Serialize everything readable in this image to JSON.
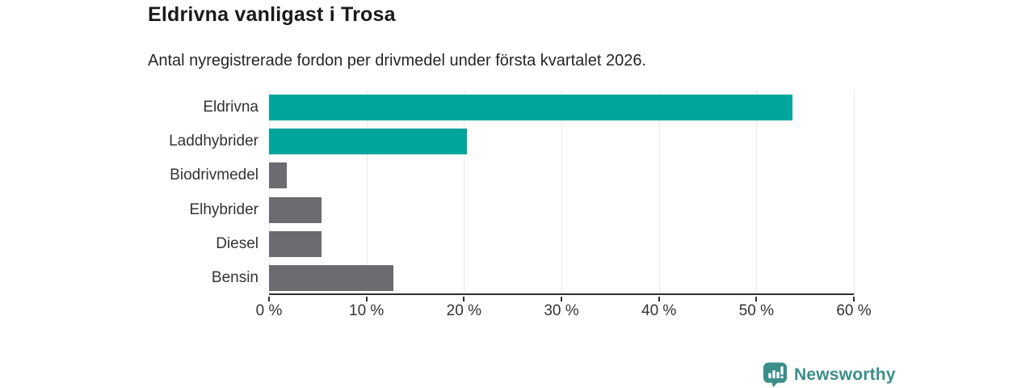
{
  "header": {
    "title": "Eldrivna vanligast i Trosa",
    "subtitle": "Antal nyregistrerade fordon per drivmedel under första kvartalet 2026."
  },
  "chart_data": {
    "type": "bar",
    "orientation": "horizontal",
    "title": "Eldrivna vanligast i Trosa",
    "subtitle": "Antal nyregistrerade fordon per drivmedel under första kvartalet 2026.",
    "categories": [
      "Eldrivna",
      "Laddhybrider",
      "Biodrivmedel",
      "Elhybrider",
      "Diesel",
      "Bensin"
    ],
    "values": [
      53.7,
      20.3,
      1.8,
      5.4,
      5.4,
      12.8
    ],
    "unit": "%",
    "xlabel": "",
    "ylabel": "",
    "xlim": [
      0,
      60
    ],
    "x_ticks": [
      0,
      10,
      20,
      30,
      40,
      50,
      60
    ],
    "x_tick_labels": [
      "0 %",
      "10 %",
      "20 %",
      "30 %",
      "40 %",
      "50 %",
      "60 %"
    ],
    "grid": true,
    "legend": false,
    "bar_colors": [
      "#00a59b",
      "#00a59b",
      "#6b6b70",
      "#6b6b70",
      "#6b6b70",
      "#6b6b70"
    ],
    "colors": {
      "highlight": "#00a59b",
      "default_bar": "#6b6b70",
      "gridline": "#e8e8e8",
      "axis": "#2e2e2e",
      "text": "#333333"
    }
  },
  "branding": {
    "name": "Newsworthy",
    "color": "#3a8e89",
    "icon": "newsworthy-speech-bubble-barchart-icon"
  }
}
